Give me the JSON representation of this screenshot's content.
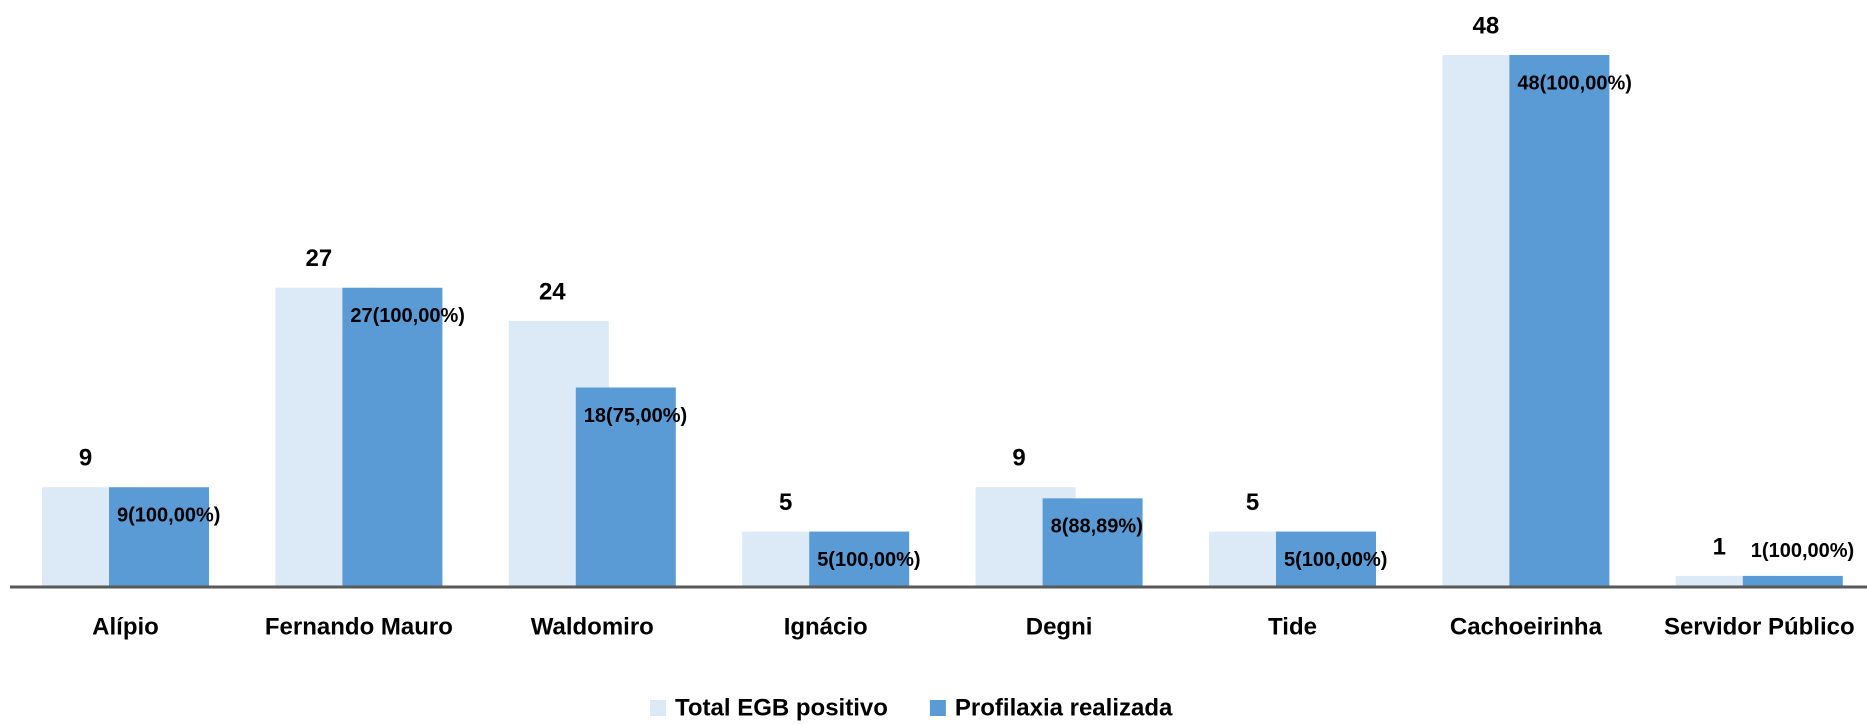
{
  "chart_data": {
    "type": "bar",
    "categories": [
      "Alípio",
      "Fernando Mauro",
      "Waldomiro",
      "Ignácio",
      "Degni",
      "Tide",
      "Cachoeirinha",
      "Servidor Público"
    ],
    "series": [
      {
        "name": "Total EGB positivo",
        "color": "#dce9f6",
        "values": [
          9,
          27,
          24,
          5,
          9,
          5,
          48,
          1
        ]
      },
      {
        "name": "Profilaxia realizada",
        "color": "#5b9bd5",
        "values": [
          9,
          27,
          18,
          5,
          8,
          5,
          48,
          1
        ],
        "value_labels": [
          "9(100,00%)",
          "27(100,00%)",
          "18(75,00%)",
          "5(100,00%)",
          "8(88,89%)",
          "5(100,00%)",
          "48(100,00%)",
          "1(100,00%)"
        ]
      }
    ],
    "legend": "bottom"
  }
}
